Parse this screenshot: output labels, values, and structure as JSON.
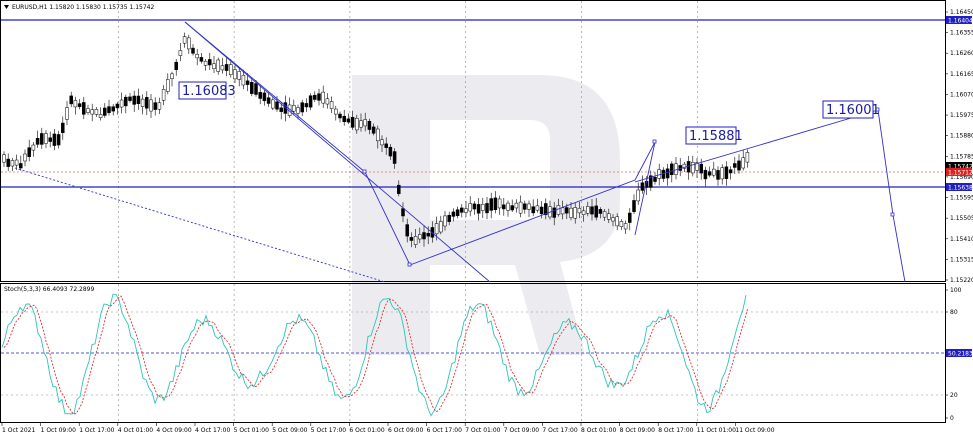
{
  "header": {
    "symbol_info": "EURUSD,H1  1.15820 1.15830 1.15735 1.15742",
    "indicator_info": "Stoch(5,3,3) 66.4093 72.2899"
  },
  "price_axis": {
    "labels": [
      "1.16450",
      "1.16355",
      "1.16260",
      "1.16165",
      "1.16070",
      "1.15975",
      "1.15880",
      "1.15785",
      "1.15690",
      "1.15595",
      "1.15505",
      "1.15410",
      "1.15315",
      "1.15220"
    ],
    "tags": [
      {
        "value": "1.16404",
        "color": "#2020c0"
      },
      {
        "value": "1.15742",
        "color": "#000000"
      },
      {
        "value": "1.15712",
        "color": "#e02020"
      },
      {
        "value": "1.15638",
        "color": "#2020c0"
      }
    ]
  },
  "stoch_axis": {
    "labels": [
      "100",
      "80",
      "20",
      "0"
    ],
    "tag": "50.2183"
  },
  "time_axis": {
    "labels": [
      "1 Oct 2021",
      "1 Oct 09:00",
      "1 Oct 17:00",
      "4 Oct 01:00",
      "4 Oct 09:00",
      "4 Oct 17:00",
      "5 Oct 01:00",
      "5 Oct 09:00",
      "5 Oct 17:00",
      "6 Oct 01:00",
      "6 Oct 09:00",
      "6 Oct 17:00",
      "7 Oct 01:00",
      "7 Oct 09:00",
      "7 Oct 17:00",
      "8 Oct 01:00",
      "8 Oct 09:00",
      "8 Oct 17:00",
      "11 Oct 01:00",
      "11 Oct 09:00"
    ]
  },
  "annotations": {
    "left_label": "1.16083",
    "mid_label": "1.15881",
    "right_label": "1.16001"
  },
  "colors": {
    "line_blue": "#2020c0",
    "candle": "#000000",
    "stoch_main": "#2ec4b6",
    "stoch_signal": "#e03030",
    "watermark": "#e8e8ec"
  },
  "chart_data": {
    "type": "candlestick",
    "series": [
      {
        "name": "EURUSD,H1",
        "close_last": 1.15742
      },
      {
        "name": "Stoch(5,3,3)",
        "main": 66.4093,
        "signal": 72.2899
      }
    ]
  }
}
